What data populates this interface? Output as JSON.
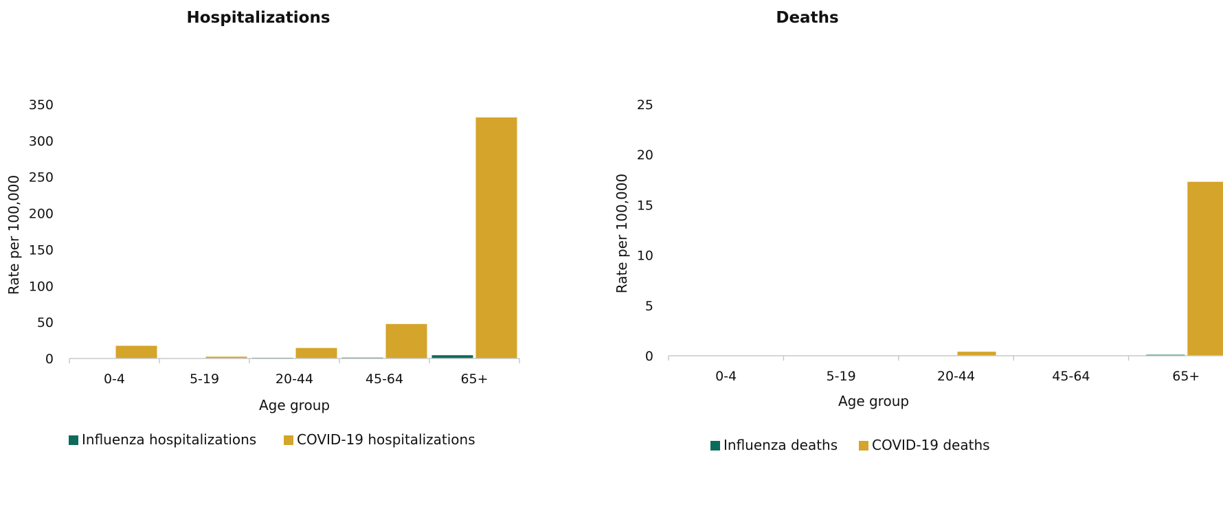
{
  "chart_data": [
    {
      "type": "bar",
      "title": "Hospitalizations",
      "xlabel": "Age group",
      "ylabel": "Rate per 100,000",
      "categories": [
        "0-4",
        "5-19",
        "20-44",
        "45-64",
        "65+"
      ],
      "ylim": [
        0,
        350
      ],
      "yticks": [
        0,
        50,
        100,
        150,
        200,
        250,
        300,
        350
      ],
      "grid": false,
      "legend_position": "bottom",
      "series": [
        {
          "name": "Influenza hospitalizations",
          "color": "#0d6b5a",
          "values": [
            0.3,
            0.2,
            1.0,
            1.2,
            4.5
          ]
        },
        {
          "name": "COVID-19 hospitalizations",
          "color": "#d4a42b",
          "values": [
            17.5,
            2.5,
            14.5,
            47.5,
            332
          ]
        }
      ]
    },
    {
      "type": "bar",
      "title": "Deaths",
      "xlabel": "Age group",
      "ylabel": "Rate per 100,000",
      "categories": [
        "0-4",
        "5-19",
        "20-44",
        "45-64",
        "65+"
      ],
      "ylim": [
        0,
        25
      ],
      "yticks": [
        0,
        5,
        10,
        15,
        20,
        25
      ],
      "grid": false,
      "legend_position": "bottom",
      "series": [
        {
          "name": "Influenza deaths",
          "color": "#0d6b5a",
          "values": [
            0,
            0,
            0,
            0,
            0.1
          ]
        },
        {
          "name": "COVID-19 deaths",
          "color": "#d4a42b",
          "values": [
            0,
            0,
            0.4,
            0,
            17.3
          ]
        }
      ]
    }
  ]
}
